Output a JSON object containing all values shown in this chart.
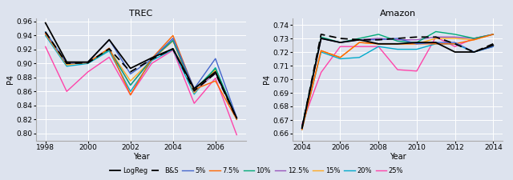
{
  "trec": {
    "title": "TREC",
    "xlabel": "Year",
    "ylabel": "P4",
    "years": [
      1998,
      1999,
      2000,
      2001,
      2002,
      2003,
      2004,
      2005,
      2006,
      2007
    ],
    "ylim": [
      0.79,
      0.965
    ],
    "yticks": [
      0.8,
      0.82,
      0.84,
      0.86,
      0.88,
      0.9,
      0.92,
      0.94,
      0.96
    ],
    "series": {
      "LogReg": [
        0.958,
        0.902,
        0.902,
        0.934,
        0.893,
        0.908,
        0.921,
        0.864,
        0.888,
        0.822
      ],
      "B&S": [
        0.945,
        0.9,
        0.901,
        0.921,
        0.888,
        0.906,
        0.921,
        0.861,
        0.886,
        0.821
      ],
      "5%": [
        0.945,
        0.9,
        0.902,
        0.934,
        0.885,
        0.906,
        0.936,
        0.864,
        0.907,
        0.823
      ],
      "7.5%": [
        0.943,
        0.9,
        0.901,
        0.922,
        0.855,
        0.907,
        0.94,
        0.863,
        0.875,
        0.82
      ],
      "10%": [
        0.945,
        0.9,
        0.901,
        0.92,
        0.869,
        0.906,
        0.933,
        0.862,
        0.893,
        0.822
      ],
      "12.5%": [
        0.943,
        0.9,
        0.902,
        0.92,
        0.869,
        0.906,
        0.933,
        0.86,
        0.886,
        0.822
      ],
      "15%": [
        0.942,
        0.898,
        0.902,
        0.92,
        0.875,
        0.905,
        0.932,
        0.858,
        0.891,
        0.822
      ],
      "20%": [
        0.94,
        0.896,
        0.9,
        0.918,
        0.86,
        0.904,
        0.92,
        0.856,
        0.894,
        0.82
      ],
      "25%": [
        0.924,
        0.86,
        0.888,
        0.909,
        0.855,
        0.9,
        0.919,
        0.843,
        0.879,
        0.798
      ]
    }
  },
  "amazon": {
    "title": "Amazon",
    "xlabel": "Year",
    "ylabel": "P4",
    "years": [
      2004,
      2005,
      2006,
      2007,
      2008,
      2009,
      2010,
      2011,
      2012,
      2013,
      2014
    ],
    "ylim": [
      0.655,
      0.745
    ],
    "yticks": [
      0.66,
      0.67,
      0.68,
      0.69,
      0.7,
      0.71,
      0.72,
      0.73,
      0.74
    ],
    "series": {
      "LogReg": [
        0.664,
        0.73,
        0.727,
        0.729,
        0.726,
        0.726,
        0.727,
        0.727,
        0.72,
        0.72,
        0.725
      ],
      "B&S": [
        0.664,
        0.733,
        0.73,
        0.729,
        0.729,
        0.73,
        0.731,
        0.731,
        0.726,
        0.72,
        0.726
      ],
      "5%": [
        0.664,
        0.73,
        0.727,
        0.729,
        0.729,
        0.73,
        0.726,
        0.727,
        0.727,
        0.72,
        0.724
      ],
      "7.5%": [
        0.663,
        0.721,
        0.716,
        0.727,
        0.726,
        0.726,
        0.726,
        0.726,
        0.726,
        0.729,
        0.733
      ],
      "10%": [
        0.665,
        0.731,
        0.727,
        0.73,
        0.733,
        0.728,
        0.727,
        0.735,
        0.733,
        0.73,
        0.733
      ],
      "12.5%": [
        0.664,
        0.73,
        0.727,
        0.729,
        0.73,
        0.729,
        0.729,
        0.731,
        0.731,
        0.73,
        0.733
      ],
      "15%": [
        0.663,
        0.721,
        0.716,
        0.727,
        0.726,
        0.726,
        0.726,
        0.73,
        0.73,
        0.729,
        0.733
      ],
      "20%": [
        0.663,
        0.72,
        0.715,
        0.716,
        0.724,
        0.722,
        0.722,
        0.726,
        0.726,
        0.72,
        0.724
      ],
      "25%": [
        0.667,
        0.705,
        0.724,
        0.724,
        0.724,
        0.707,
        0.706,
        0.731,
        0.724,
        0.73,
        0.733
      ]
    }
  },
  "colors": {
    "LogReg": "#000000",
    "B&S": "#000000",
    "5%": "#4466cc",
    "7.5%": "#ff6600",
    "10%": "#00aa77",
    "12.5%": "#9955bb",
    "15%": "#ffaa22",
    "20%": "#00aacc",
    "25%": "#ff44aa"
  },
  "fig_bg": "#dde3ee",
  "ax_bg": "#dde3ee",
  "grid_color": "#ffffff",
  "series_order": [
    "25%",
    "20%",
    "15%",
    "12.5%",
    "10%",
    "7.5%",
    "5%",
    "B&S",
    "LogReg"
  ],
  "legend_order": [
    "LogReg",
    "B&S",
    "5%",
    "7.5%",
    "10%",
    "12.5%",
    "15%",
    "20%",
    "25%"
  ]
}
